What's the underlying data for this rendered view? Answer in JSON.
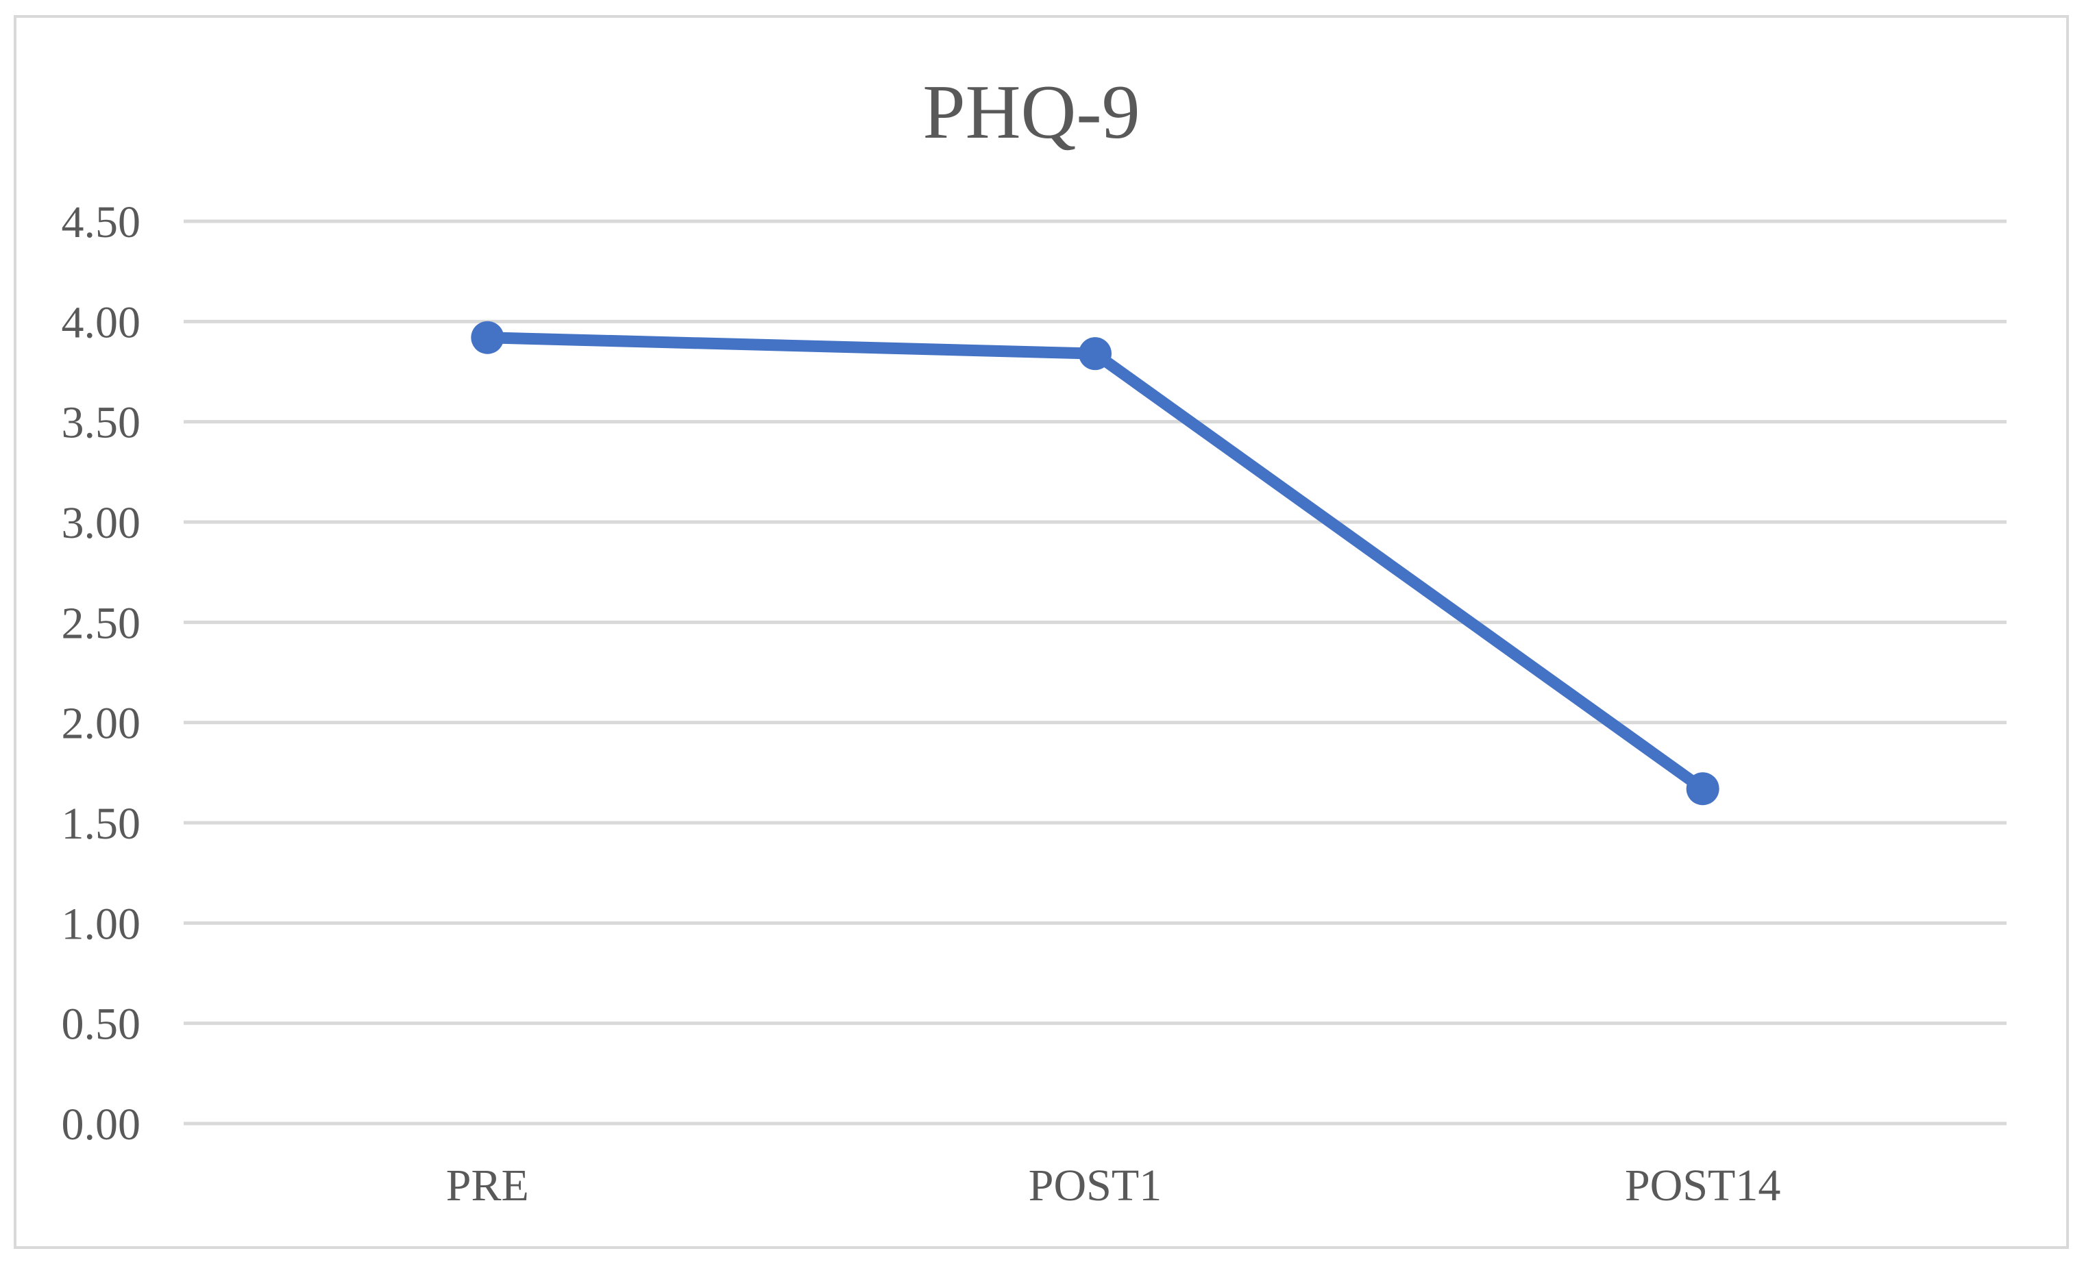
{
  "chart_data": {
    "type": "line",
    "title": "PHQ-9",
    "categories": [
      "PRE",
      "POST1",
      "POST14"
    ],
    "series": [
      {
        "values": [
          3.92,
          3.84,
          1.67
        ]
      }
    ],
    "ylim": [
      0,
      4.5
    ],
    "yticks": [
      "0.00",
      "0.50",
      "1.00",
      "1.50",
      "2.00",
      "2.50",
      "3.00",
      "3.50",
      "4.00",
      "4.50"
    ],
    "grid": true,
    "legend": "none",
    "xlabel": "",
    "ylabel": "",
    "colors": {
      "series": "#4472c4",
      "grid": "#d9d9d9",
      "text": "#595959",
      "border": "#d9d9d9"
    }
  }
}
